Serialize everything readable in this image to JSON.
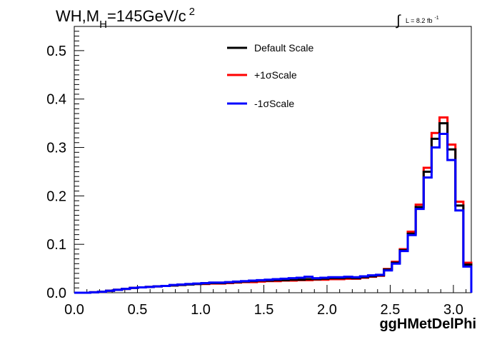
{
  "chart_data": {
    "type": "line",
    "title": "WH,M",
    "title_sub": "H",
    "title_tail": "=145GeV/c",
    "title_sup": "2",
    "lumi_label": "L = 8.2 fb",
    "lumi_sup": "-1",
    "xlabel": "ggHMetDelPhi",
    "ylabel": "",
    "xlim": [
      0,
      3.1416
    ],
    "ylim": [
      0,
      0.55
    ],
    "xticks": [
      "0.0",
      "0.5",
      "1.0",
      "1.5",
      "2.0",
      "2.5",
      "3.0"
    ],
    "yticks": [
      "0.0",
      "0.1",
      "0.2",
      "0.3",
      "0.4",
      "0.5"
    ],
    "legend_position": "top-center",
    "bin_edges": [
      0,
      0.0628,
      0.1257,
      0.1885,
      0.2513,
      0.3142,
      0.377,
      0.4398,
      0.5027,
      0.5655,
      0.6283,
      0.6912,
      0.754,
      0.8168,
      0.8796,
      0.9425,
      1.0053,
      1.0681,
      1.131,
      1.1938,
      1.2566,
      1.3195,
      1.3823,
      1.4451,
      1.508,
      1.5708,
      1.6336,
      1.6965,
      1.7593,
      1.8221,
      1.885,
      1.9478,
      2.0106,
      2.0735,
      2.1363,
      2.1991,
      2.2619,
      2.3248,
      2.3876,
      2.4504,
      2.5133,
      2.5761,
      2.6389,
      2.7018,
      2.7646,
      2.8274,
      2.8903,
      2.9531,
      3.0159,
      3.0788,
      3.1416
    ],
    "series": [
      {
        "name": "Default Scale",
        "color": "#000000",
        "values": [
          0.0,
          0.0,
          0.001,
          0.002,
          0.004,
          0.006,
          0.008,
          0.01,
          0.011,
          0.012,
          0.013,
          0.014,
          0.015,
          0.016,
          0.017,
          0.018,
          0.019,
          0.02,
          0.02,
          0.021,
          0.022,
          0.023,
          0.024,
          0.025,
          0.025,
          0.026,
          0.026,
          0.027,
          0.027,
          0.028,
          0.028,
          0.029,
          0.03,
          0.03,
          0.031,
          0.03,
          0.032,
          0.034,
          0.036,
          0.048,
          0.062,
          0.088,
          0.122,
          0.177,
          0.25,
          0.318,
          0.35,
          0.296,
          0.18,
          0.058
        ]
      },
      {
        "name": "+1σScale",
        "color": "#ff0000",
        "values": [
          0.0,
          0.0,
          0.001,
          0.002,
          0.004,
          0.006,
          0.008,
          0.01,
          0.011,
          0.012,
          0.013,
          0.014,
          0.015,
          0.016,
          0.017,
          0.018,
          0.018,
          0.019,
          0.019,
          0.02,
          0.021,
          0.022,
          0.022,
          0.023,
          0.024,
          0.024,
          0.025,
          0.025,
          0.026,
          0.026,
          0.027,
          0.027,
          0.028,
          0.028,
          0.029,
          0.029,
          0.031,
          0.033,
          0.035,
          0.049,
          0.064,
          0.09,
          0.126,
          0.182,
          0.258,
          0.33,
          0.362,
          0.306,
          0.188,
          0.062
        ]
      },
      {
        "name": "-1σScale",
        "color": "#0000ff",
        "values": [
          0.0,
          0.0,
          0.001,
          0.002,
          0.004,
          0.006,
          0.008,
          0.01,
          0.011,
          0.012,
          0.013,
          0.014,
          0.016,
          0.017,
          0.018,
          0.019,
          0.02,
          0.021,
          0.021,
          0.022,
          0.023,
          0.024,
          0.025,
          0.026,
          0.027,
          0.028,
          0.029,
          0.03,
          0.031,
          0.033,
          0.03,
          0.031,
          0.032,
          0.032,
          0.033,
          0.032,
          0.034,
          0.036,
          0.037,
          0.046,
          0.06,
          0.086,
          0.119,
          0.173,
          0.238,
          0.3,
          0.328,
          0.274,
          0.17,
          0.054
        ]
      }
    ]
  }
}
